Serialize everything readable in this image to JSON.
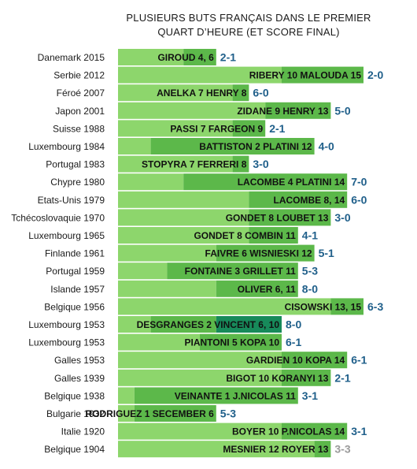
{
  "chart_data": {
    "type": "bar",
    "orientation": "horizontal",
    "title": [
      "PLUSIEURS BUTS FRANÇAIS DANS LE PREMIER",
      "QUART D’HEURE (ET SCORE FINAL)"
    ],
    "xlim": [
      0,
      15
    ],
    "x_unit": "minutes",
    "grid": false,
    "legend": "none",
    "colors": {
      "bar_light": "#8dd66c",
      "bar_dark": "#5cb84a",
      "bar_highlight": "#178a5a",
      "score": "#1f5f8a",
      "score_draw": "#9a9a9a"
    },
    "rows": [
      {
        "category": "Danemark 2015",
        "label": "GIROUD 4, 6",
        "score": "2-1",
        "goals": [
          4,
          6
        ],
        "result": "win"
      },
      {
        "category": "Serbie 2012",
        "label": "RIBERY 10 MALOUDA 15",
        "score": "2-0",
        "goals": [
          10,
          15
        ],
        "result": "win"
      },
      {
        "category": "Féroé 2007",
        "label": "ANELKA 7 HENRY 8",
        "score": "6-0",
        "goals": [
          7,
          8
        ],
        "result": "win"
      },
      {
        "category": "Japon 2001",
        "label": "ZIDANE 9 HENRY 13",
        "score": "5-0",
        "goals": [
          9,
          13
        ],
        "result": "win"
      },
      {
        "category": "Suisse 1988",
        "label": "PASSI 7 FARGEON 9",
        "score": "2-1",
        "goals": [
          7,
          9
        ],
        "result": "win"
      },
      {
        "category": "Luxembourg 1984",
        "label": "BATTISTON 2 PLATINI 12",
        "score": "4-0",
        "goals": [
          2,
          12
        ],
        "result": "win"
      },
      {
        "category": "Portugal 1983",
        "label": "STOPYRA 7 FERRERI 8",
        "score": "3-0",
        "goals": [
          7,
          8
        ],
        "result": "win"
      },
      {
        "category": "Chypre 1980",
        "label": "LACOMBE 4 PLATINI 14",
        "score": "7-0",
        "goals": [
          4,
          14
        ],
        "result": "win"
      },
      {
        "category": "Etats-Unis 1979",
        "label": "LACOMBE 8, 14",
        "score": "6-0",
        "goals": [
          8,
          14
        ],
        "result": "win"
      },
      {
        "category": "Tchécoslovaquie 1970",
        "label": "GONDET 8 LOUBET 13",
        "score": "3-0",
        "goals": [
          8,
          13
        ],
        "result": "win"
      },
      {
        "category": "Luxembourg 1965",
        "label": "GONDET 8 COMBIN 11",
        "score": "4-1",
        "goals": [
          8,
          11
        ],
        "result": "win"
      },
      {
        "category": "Finlande 1961",
        "label": "FAIVRE 6 WISNIESKI 12",
        "score": "5-1",
        "goals": [
          6,
          12
        ],
        "result": "win"
      },
      {
        "category": "Portugal 1959",
        "label": "FONTAINE 3 GRILLET 11",
        "score": "5-3",
        "goals": [
          3,
          11
        ],
        "result": "win"
      },
      {
        "category": "Islande 1957",
        "label": "OLIVER 6, 11",
        "score": "8-0",
        "goals": [
          6,
          11
        ],
        "result": "win"
      },
      {
        "category": "Belgique 1956",
        "label": "CISOWSKI 13, 15",
        "score": "6-3",
        "goals": [
          13,
          15
        ],
        "result": "win"
      },
      {
        "category": "Luxembourg 1953",
        "label": "DESGRANGES 2 VINCENT 6, 10",
        "score": "8-0",
        "goals": [
          2,
          6,
          10
        ],
        "result": "win"
      },
      {
        "category": "Luxembourg 1953",
        "label": "PIANTONI 5 KOPA 10",
        "score": "6-1",
        "goals": [
          5,
          10
        ],
        "result": "win"
      },
      {
        "category": "Galles 1953",
        "label": "GARDIEN 10 KOPA 14",
        "score": "6-1",
        "goals": [
          10,
          14
        ],
        "result": "win"
      },
      {
        "category": "Galles 1939",
        "label": "BIGOT 10 KORANYI 13",
        "score": "2-1",
        "goals": [
          10,
          13
        ],
        "result": "win"
      },
      {
        "category": "Belgique 1938",
        "label": "VEINANTE 1 J.NICOLAS 11",
        "score": "3-1",
        "goals": [
          1,
          11
        ],
        "result": "win"
      },
      {
        "category": "Bulgarie 1932",
        "label": "RODRIGUEZ 1 SECEMBER 6",
        "score": "5-3",
        "goals": [
          1,
          6
        ],
        "result": "win"
      },
      {
        "category": "Italie 1920",
        "label": "BOYER 10 P.NICOLAS 14",
        "score": "3-1",
        "goals": [
          10,
          14
        ],
        "result": "win"
      },
      {
        "category": "Belgique 1904",
        "label": "MESNIER 12 ROYER 13",
        "score": "3-3",
        "goals": [
          12,
          13
        ],
        "result": "draw"
      }
    ]
  }
}
